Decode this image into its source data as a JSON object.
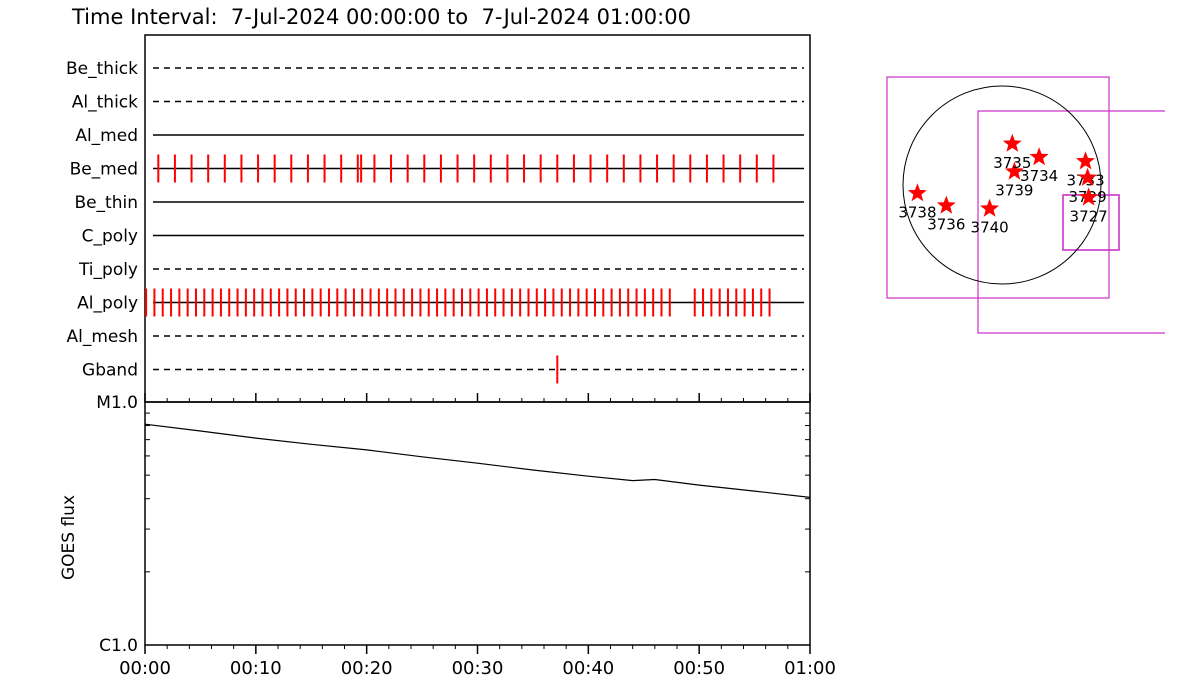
{
  "header": {
    "title": "Time Interval:  7-Jul-2024 00:00:00 to  7-Jul-2024 01:00:00"
  },
  "colors": {
    "axes": "#000000",
    "events": "#ff0000",
    "star": "#ff0000",
    "fov_box": "#cc33cc",
    "background": "#ffffff"
  },
  "chart_data": [
    {
      "type": "timeline",
      "xlim": [
        0,
        60
      ],
      "x_unit": "minutes",
      "rows": [
        {
          "label": "Be_thick",
          "style": "dashed",
          "ticks": []
        },
        {
          "label": "Al_thick",
          "style": "dashed",
          "ticks": []
        },
        {
          "label": "Al_med",
          "style": "solid",
          "ticks": []
        },
        {
          "label": "Be_med",
          "style": "solid",
          "ticks": [
            1.2,
            2.7,
            4.2,
            5.7,
            7.2,
            8.7,
            10.2,
            11.7,
            13.2,
            14.7,
            16.2,
            17.7,
            19.2,
            19.5,
            20.7,
            22.2,
            23.7,
            25.2,
            26.7,
            28.2,
            29.7,
            31.2,
            32.7,
            34.2,
            35.7,
            37.2,
            38.7,
            40.2,
            41.7,
            43.2,
            44.7,
            46.2,
            47.7,
            49.2,
            50.7,
            52.2,
            53.7,
            55.2,
            56.7
          ]
        },
        {
          "label": "Be_thin",
          "style": "solid",
          "ticks": []
        },
        {
          "label": "C_poly",
          "style": "solid",
          "ticks": []
        },
        {
          "label": "Ti_poly",
          "style": "dashed",
          "ticks": []
        },
        {
          "label": "Al_poly",
          "style": "solid",
          "dense": {
            "start": 0.1,
            "end": 56.8,
            "step": 0.75,
            "gaps": [
              [
                48.0,
                49.6
              ]
            ]
          }
        },
        {
          "label": "Al_mesh",
          "style": "dashed",
          "ticks": []
        },
        {
          "label": "Gband",
          "style": "dashed",
          "ticks": [
            37.2
          ]
        }
      ]
    },
    {
      "type": "line",
      "ylabel": "GOES flux",
      "yscale": "log",
      "ytick_labels": [
        "M1.0",
        "C1.0"
      ],
      "ylim_labels": [
        "C1.0",
        "M1.0"
      ],
      "xlim": [
        0,
        60
      ],
      "x_unit": "minutes",
      "xtick_labels": [
        "00:00",
        "00:10",
        "00:20",
        "00:30",
        "00:40",
        "00:50",
        "01:00"
      ],
      "x": [
        0,
        5,
        10,
        15,
        20,
        25,
        30,
        35,
        40,
        44,
        46,
        50,
        55,
        60
      ],
      "y": [
        8.1e-06,
        7.6e-06,
        7.1e-06,
        6.7e-06,
        6.35e-06,
        5.95e-06,
        5.6e-06,
        5.25e-06,
        4.95e-06,
        4.75e-06,
        4.8e-06,
        4.55e-06,
        4.3e-06,
        4.05e-06
      ]
    },
    {
      "type": "scatter",
      "description_free": true,
      "points": [
        {
          "label": "3738",
          "x": -820,
          "y": -80
        },
        {
          "label": "3736",
          "x": -540,
          "y": -200
        },
        {
          "label": "3740",
          "x": -120,
          "y": -230
        },
        {
          "label": "3739",
          "x": 120,
          "y": 130
        },
        {
          "label": "3735",
          "x": 100,
          "y": 400
        },
        {
          "label": "3734",
          "x": 360,
          "y": 270
        },
        {
          "label": "3733",
          "x": 810,
          "y": 230
        },
        {
          "label": "3729",
          "x": 830,
          "y": 70
        },
        {
          "label": "3727",
          "x": 840,
          "y": -120
        }
      ]
    }
  ]
}
